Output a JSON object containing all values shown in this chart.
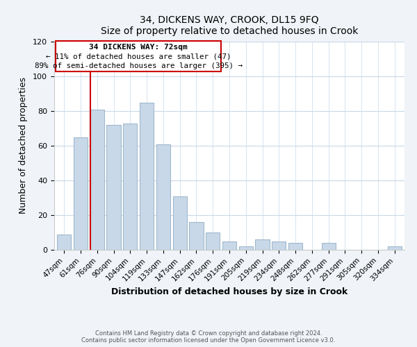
{
  "title": "34, DICKENS WAY, CROOK, DL15 9FQ",
  "subtitle": "Size of property relative to detached houses in Crook",
  "xlabel": "Distribution of detached houses by size in Crook",
  "ylabel": "Number of detached properties",
  "bar_labels": [
    "47sqm",
    "61sqm",
    "76sqm",
    "90sqm",
    "104sqm",
    "119sqm",
    "133sqm",
    "147sqm",
    "162sqm",
    "176sqm",
    "191sqm",
    "205sqm",
    "219sqm",
    "234sqm",
    "248sqm",
    "262sqm",
    "277sqm",
    "291sqm",
    "305sqm",
    "320sqm",
    "334sqm"
  ],
  "bar_values": [
    9,
    65,
    81,
    72,
    73,
    85,
    61,
    31,
    16,
    10,
    5,
    2,
    6,
    5,
    4,
    0,
    4,
    0,
    0,
    0,
    2
  ],
  "bar_color": "#c8d8e8",
  "bar_edge_color": "#a0b8cc",
  "ylim": [
    0,
    120
  ],
  "yticks": [
    0,
    20,
    40,
    60,
    80,
    100,
    120
  ],
  "marker_bar_index": 2,
  "marker_label": "34 DICKENS WAY: 72sqm",
  "annotation_line1": "← 11% of detached houses are smaller (47)",
  "annotation_line2": "89% of semi-detached houses are larger (395) →",
  "marker_color": "#cc0000",
  "box_color": "#ffffff",
  "box_edge_color": "#cc0000",
  "footer_line1": "Contains HM Land Registry data © Crown copyright and database right 2024.",
  "footer_line2": "Contains public sector information licensed under the Open Government Licence v3.0.",
  "background_color": "#f0f4f8",
  "plot_background_color": "#ffffff",
  "grid_color": "#c8d8e8"
}
